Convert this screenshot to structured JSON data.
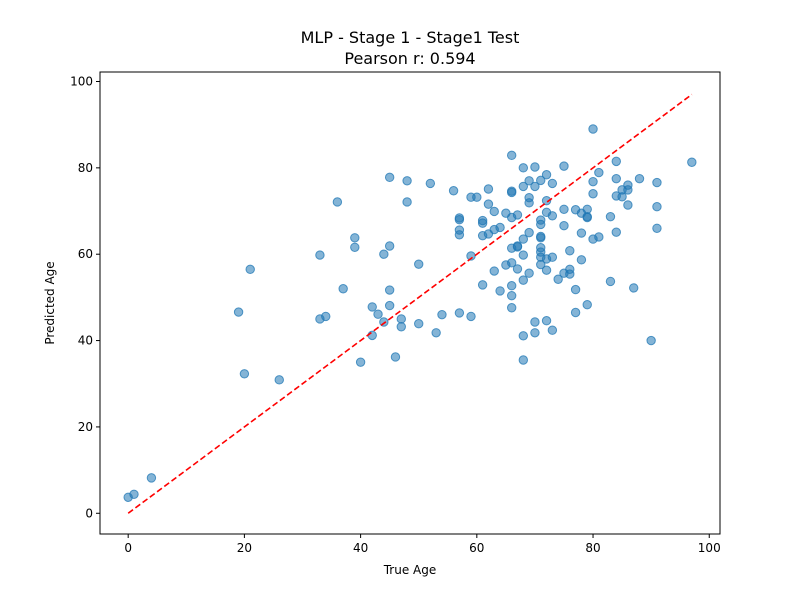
{
  "chart_data": {
    "type": "scatter",
    "title": "MLP - Stage 1 - Stage1 Test",
    "subtitle": "Pearson r: 0.594",
    "xlabel": "True Age",
    "ylabel": "Predicted Age",
    "xlim": [
      -4.85,
      101.85
    ],
    "ylim": [
      -4.8,
      102.2
    ],
    "xticks": [
      0,
      20,
      40,
      60,
      80,
      100
    ],
    "yticks": [
      0,
      20,
      40,
      60,
      80,
      100
    ],
    "grid": false,
    "colors": {
      "points": "#1f77b4",
      "reference_line": "#ff0000"
    },
    "reference_line": {
      "style": "dashed",
      "from": [
        0,
        0
      ],
      "to": [
        97,
        97
      ]
    },
    "points": [
      [
        0,
        3.7
      ],
      [
        1,
        4.4
      ],
      [
        4,
        8.2
      ],
      [
        19,
        46.6
      ],
      [
        20,
        32.3
      ],
      [
        21,
        56.5
      ],
      [
        26,
        30.9
      ],
      [
        33,
        59.8
      ],
      [
        33,
        45.0
      ],
      [
        34,
        45.6
      ],
      [
        36,
        72.1
      ],
      [
        37,
        52.0
      ],
      [
        39,
        63.8
      ],
      [
        39,
        61.6
      ],
      [
        40,
        35.0
      ],
      [
        42,
        47.8
      ],
      [
        42,
        41.2
      ],
      [
        43,
        46.1
      ],
      [
        44,
        60.0
      ],
      [
        44,
        44.3
      ],
      [
        45,
        77.8
      ],
      [
        45,
        61.9
      ],
      [
        45,
        51.7
      ],
      [
        45,
        48.1
      ],
      [
        46,
        36.2
      ],
      [
        47,
        45.0
      ],
      [
        47,
        43.2
      ],
      [
        48,
        77.0
      ],
      [
        48,
        72.1
      ],
      [
        50,
        57.7
      ],
      [
        50,
        43.9
      ],
      [
        52,
        76.4
      ],
      [
        53,
        41.8
      ],
      [
        54,
        46.0
      ],
      [
        56,
        74.7
      ],
      [
        57,
        68.4
      ],
      [
        57,
        68.0
      ],
      [
        57,
        65.6
      ],
      [
        57,
        64.5
      ],
      [
        57,
        46.4
      ],
      [
        59,
        73.2
      ],
      [
        59,
        59.6
      ],
      [
        59,
        45.6
      ],
      [
        60,
        73.2
      ],
      [
        61,
        67.8
      ],
      [
        61,
        67.2
      ],
      [
        61,
        64.3
      ],
      [
        61,
        52.9
      ],
      [
        62,
        75.1
      ],
      [
        62,
        71.6
      ],
      [
        62,
        64.7
      ],
      [
        63,
        69.9
      ],
      [
        63,
        65.7
      ],
      [
        63,
        56.1
      ],
      [
        64,
        66.2
      ],
      [
        64,
        51.5
      ],
      [
        65,
        69.5
      ],
      [
        65,
        57.5
      ],
      [
        66,
        82.9
      ],
      [
        66,
        74.6
      ],
      [
        66,
        74.3
      ],
      [
        66,
        68.5
      ],
      [
        66,
        61.4
      ],
      [
        66,
        58.0
      ],
      [
        66,
        52.7
      ],
      [
        66,
        50.4
      ],
      [
        66,
        47.6
      ],
      [
        67,
        69.1
      ],
      [
        67,
        61.9
      ],
      [
        67,
        61.7
      ],
      [
        67,
        56.6
      ],
      [
        68,
        80.0
      ],
      [
        68,
        75.7
      ],
      [
        68,
        63.5
      ],
      [
        68,
        59.8
      ],
      [
        68,
        54.0
      ],
      [
        68,
        41.1
      ],
      [
        68,
        35.5
      ],
      [
        69,
        77.0
      ],
      [
        69,
        73.1
      ],
      [
        69,
        71.9
      ],
      [
        69,
        65.0
      ],
      [
        69,
        55.6
      ],
      [
        70,
        80.2
      ],
      [
        70,
        75.7
      ],
      [
        70,
        44.3
      ],
      [
        70,
        41.8
      ],
      [
        71,
        77.1
      ],
      [
        71,
        67.9
      ],
      [
        71,
        66.9
      ],
      [
        71,
        64.1
      ],
      [
        71,
        63.8
      ],
      [
        71,
        61.5
      ],
      [
        71,
        60.5
      ],
      [
        71,
        59.3
      ],
      [
        71,
        57.6
      ],
      [
        72,
        78.4
      ],
      [
        72,
        72.4
      ],
      [
        72,
        69.7
      ],
      [
        72,
        58.9
      ],
      [
        72,
        56.3
      ],
      [
        72,
        44.6
      ],
      [
        73,
        76.4
      ],
      [
        73,
        68.9
      ],
      [
        73,
        59.3
      ],
      [
        73,
        42.4
      ],
      [
        74,
        54.2
      ],
      [
        75,
        80.4
      ],
      [
        75,
        70.4
      ],
      [
        75,
        66.6
      ],
      [
        75,
        55.6
      ],
      [
        76,
        60.8
      ],
      [
        76,
        56.5
      ],
      [
        76,
        55.4
      ],
      [
        77,
        70.3
      ],
      [
        77,
        51.8
      ],
      [
        77,
        46.5
      ],
      [
        78,
        69.5
      ],
      [
        78,
        64.9
      ],
      [
        78,
        58.7
      ],
      [
        79,
        70.4
      ],
      [
        79,
        68.7
      ],
      [
        79,
        68.5
      ],
      [
        79,
        48.3
      ],
      [
        80,
        89.0
      ],
      [
        80,
        76.8
      ],
      [
        80,
        74.0
      ],
      [
        80,
        63.5
      ],
      [
        81,
        78.9
      ],
      [
        81,
        64.0
      ],
      [
        83,
        68.7
      ],
      [
        83,
        53.7
      ],
      [
        84,
        81.5
      ],
      [
        84,
        77.5
      ],
      [
        84,
        73.5
      ],
      [
        84,
        65.1
      ],
      [
        85,
        74.9
      ],
      [
        85,
        73.3
      ],
      [
        86,
        76.0
      ],
      [
        86,
        74.9
      ],
      [
        86,
        71.4
      ],
      [
        87,
        52.2
      ],
      [
        88,
        77.5
      ],
      [
        90,
        40.0
      ],
      [
        91,
        76.6
      ],
      [
        91,
        71.0
      ],
      [
        91,
        66.0
      ],
      [
        97,
        81.3
      ]
    ]
  }
}
